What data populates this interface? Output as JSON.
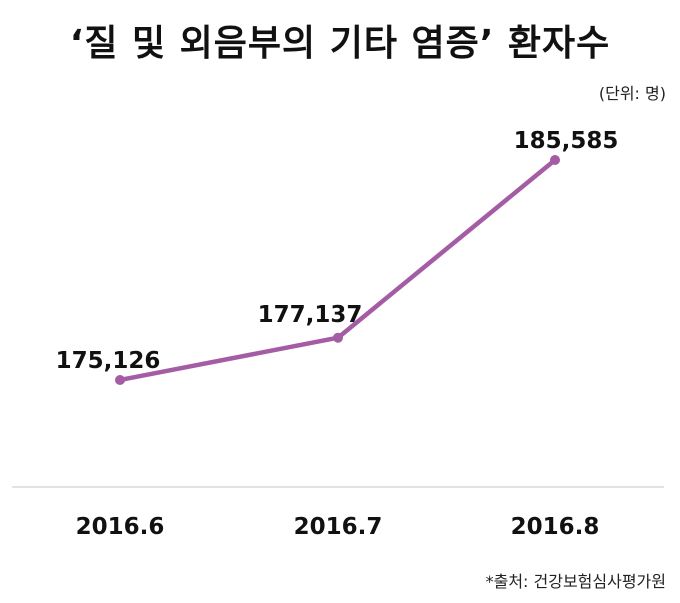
{
  "title": "‘질 및 외음부의 기타 염증’ 환자수",
  "unit_label": "(단위: 명)",
  "source": "*출처: 건강보험심사평가원",
  "chart_data": {
    "type": "line",
    "categories": [
      "2016.6",
      "2016.7",
      "2016.8"
    ],
    "series": [
      {
        "values": [
          175126,
          177137,
          185585
        ],
        "labels": [
          "175,126",
          "177,137",
          "185,585"
        ],
        "color": "#A45CA4"
      }
    ],
    "title": "‘질 및 외음부의 기타 염증’ 환자수",
    "xlabel": "",
    "ylabel": "",
    "grid": false,
    "legend": "none",
    "axis_color": "#d9d9d9"
  }
}
